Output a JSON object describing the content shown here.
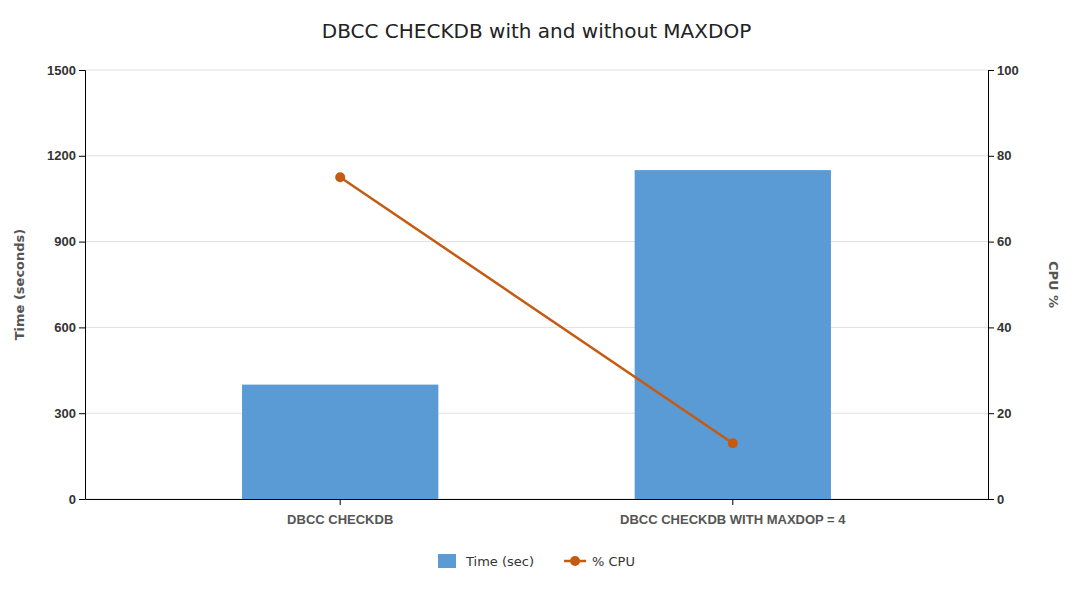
{
  "chart_data": {
    "type": "bar",
    "title": "DBCC CHECKDB with and without MAXDOP",
    "categories": [
      "DBCC CHECKDB",
      "DBCC CHECKDB WITH MAXDOP = 4"
    ],
    "series": [
      {
        "name": "Time (sec)",
        "type": "bar",
        "color": "#5B9BD5",
        "values": [
          400,
          1150
        ]
      },
      {
        "name": "% CPU",
        "type": "line",
        "color": "#C55A11",
        "marker": "circle",
        "axis": "y2",
        "values": [
          75,
          13
        ]
      }
    ],
    "ylabel": "Time (seconds)",
    "y2label": "CPU %",
    "ylim": [
      0,
      1500
    ],
    "yticks": [
      0,
      300,
      600,
      900,
      1200,
      1500
    ],
    "y2lim": [
      0,
      100
    ],
    "y2ticks": [
      0,
      20,
      40,
      60,
      80,
      100
    ],
    "grid": true,
    "legend": "bottom"
  }
}
